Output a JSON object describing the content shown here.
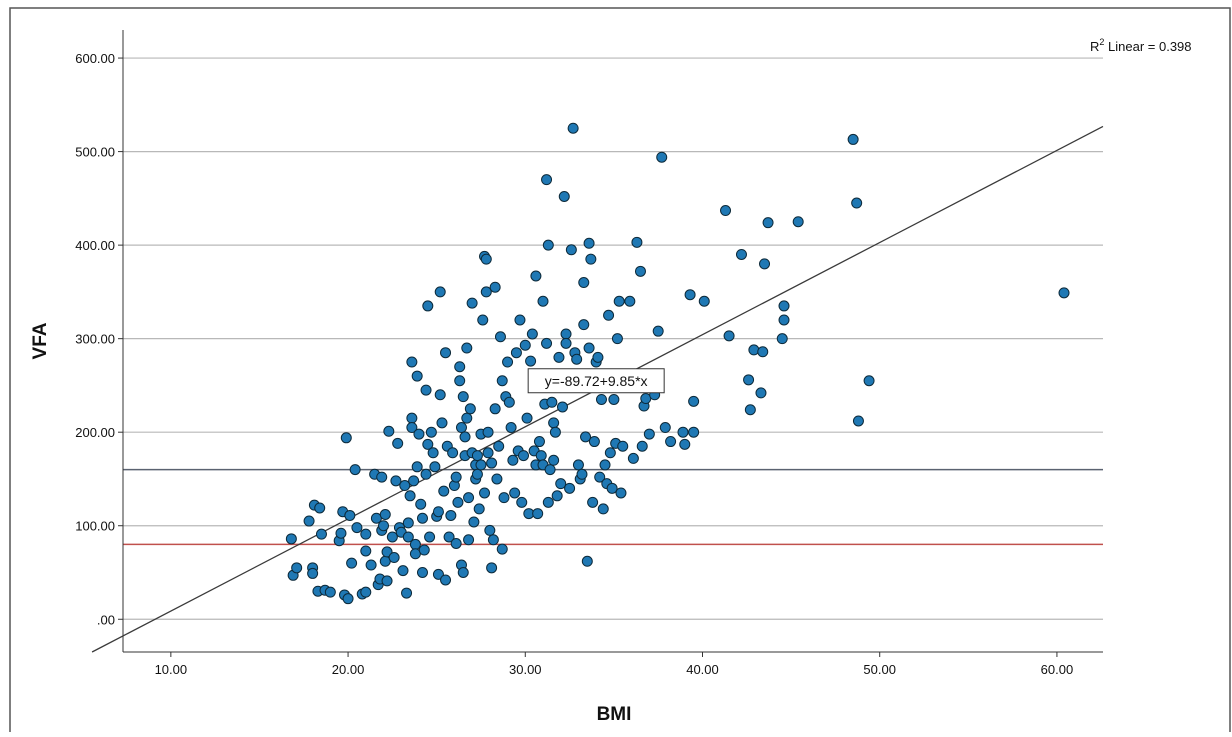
{
  "chart_data": {
    "type": "scatter",
    "xlabel": "BMI",
    "ylabel": "VFA",
    "xlim": [
      7.3,
      62.6
    ],
    "ylim": [
      -35,
      630
    ],
    "xticks": [
      10,
      20,
      30,
      40,
      50,
      60
    ],
    "xtick_labels": [
      "10.00",
      "20.00",
      "30.00",
      "40.00",
      "50.00",
      "60.00"
    ],
    "yticks": [
      0,
      100,
      200,
      300,
      400,
      500,
      600
    ],
    "ytick_labels": [
      ".00",
      "100.00",
      "200.00",
      "300.00",
      "400.00",
      "500.00",
      "600.00"
    ],
    "grid": true,
    "r2_label": "R",
    "r2_superscript": "2",
    "r2_text": " Linear = 0.398",
    "fit_line": {
      "intercept": -89.72,
      "slope": 9.85,
      "label": "y=-89.72+9.85*x",
      "label_at": [
        34.0,
        255.0
      ]
    },
    "reference_lines": [
      {
        "y": 160,
        "color": "#5a6270"
      },
      {
        "y": 80,
        "color": "#c0504d"
      }
    ],
    "colors": {
      "marker_fill": "#1f78b4",
      "marker_stroke": "#0d2a3a",
      "grid": "#b8b8b8",
      "axis": "#333333",
      "fit_line": "#3a3a3a"
    },
    "points": [
      [
        16.8,
        86
      ],
      [
        16.9,
        47
      ],
      [
        17.1,
        55
      ],
      [
        17.8,
        105
      ],
      [
        18.0,
        55
      ],
      [
        18.0,
        49
      ],
      [
        18.1,
        122
      ],
      [
        18.3,
        30
      ],
      [
        18.4,
        119
      ],
      [
        18.5,
        91
      ],
      [
        18.7,
        31
      ],
      [
        19.0,
        29
      ],
      [
        19.5,
        84
      ],
      [
        19.6,
        92
      ],
      [
        19.7,
        115
      ],
      [
        19.8,
        26
      ],
      [
        19.9,
        194
      ],
      [
        20.0,
        22
      ],
      [
        20.1,
        111
      ],
      [
        20.2,
        60
      ],
      [
        20.4,
        160
      ],
      [
        20.5,
        98
      ],
      [
        20.8,
        27
      ],
      [
        21.0,
        29
      ],
      [
        21.0,
        73
      ],
      [
        21.0,
        91
      ],
      [
        21.3,
        58
      ],
      [
        21.5,
        155
      ],
      [
        21.6,
        108
      ],
      [
        21.7,
        37
      ],
      [
        21.8,
        43
      ],
      [
        21.9,
        95
      ],
      [
        21.9,
        152
      ],
      [
        22.0,
        100
      ],
      [
        22.1,
        112
      ],
      [
        22.1,
        62
      ],
      [
        22.2,
        72
      ],
      [
        22.2,
        41
      ],
      [
        22.3,
        201
      ],
      [
        22.5,
        88
      ],
      [
        22.6,
        66
      ],
      [
        22.7,
        148
      ],
      [
        22.8,
        188
      ],
      [
        22.9,
        98
      ],
      [
        23.0,
        93
      ],
      [
        23.1,
        52
      ],
      [
        23.2,
        143
      ],
      [
        23.3,
        28
      ],
      [
        23.4,
        88
      ],
      [
        23.4,
        103
      ],
      [
        23.5,
        132
      ],
      [
        23.6,
        275
      ],
      [
        23.6,
        215
      ],
      [
        23.6,
        205
      ],
      [
        23.7,
        148
      ],
      [
        23.8,
        80
      ],
      [
        23.8,
        70
      ],
      [
        23.9,
        260
      ],
      [
        23.9,
        163
      ],
      [
        24.0,
        198
      ],
      [
        24.1,
        123
      ],
      [
        24.2,
        108
      ],
      [
        24.2,
        50
      ],
      [
        24.3,
        74
      ],
      [
        24.4,
        245
      ],
      [
        24.4,
        155
      ],
      [
        24.5,
        187
      ],
      [
        24.5,
        335
      ],
      [
        24.6,
        88
      ],
      [
        24.7,
        200
      ],
      [
        24.8,
        178
      ],
      [
        24.9,
        163
      ],
      [
        25.0,
        110
      ],
      [
        25.1,
        115
      ],
      [
        25.1,
        48
      ],
      [
        25.2,
        350
      ],
      [
        25.2,
        240
      ],
      [
        25.3,
        210
      ],
      [
        25.4,
        137
      ],
      [
        25.5,
        42
      ],
      [
        25.5,
        285
      ],
      [
        25.6,
        185
      ],
      [
        25.7,
        88
      ],
      [
        25.8,
        111
      ],
      [
        25.9,
        178
      ],
      [
        26.0,
        143
      ],
      [
        26.1,
        81
      ],
      [
        26.1,
        152
      ],
      [
        26.2,
        125
      ],
      [
        26.3,
        270
      ],
      [
        26.3,
        255
      ],
      [
        26.4,
        205
      ],
      [
        26.4,
        58
      ],
      [
        26.5,
        50
      ],
      [
        26.5,
        238
      ],
      [
        26.6,
        195
      ],
      [
        26.6,
        175
      ],
      [
        26.7,
        290
      ],
      [
        26.7,
        215
      ],
      [
        26.8,
        130
      ],
      [
        26.8,
        85
      ],
      [
        26.9,
        225
      ],
      [
        27.0,
        178
      ],
      [
        27.0,
        338
      ],
      [
        27.1,
        104
      ],
      [
        27.2,
        165
      ],
      [
        27.2,
        150
      ],
      [
        27.3,
        155
      ],
      [
        27.3,
        175
      ],
      [
        27.4,
        118
      ],
      [
        27.5,
        198
      ],
      [
        27.5,
        165
      ],
      [
        27.6,
        320
      ],
      [
        27.7,
        388
      ],
      [
        27.7,
        135
      ],
      [
        27.8,
        350
      ],
      [
        27.8,
        385
      ],
      [
        27.9,
        200
      ],
      [
        27.9,
        178
      ],
      [
        28.0,
        95
      ],
      [
        28.1,
        55
      ],
      [
        28.1,
        167
      ],
      [
        28.2,
        85
      ],
      [
        28.3,
        355
      ],
      [
        28.3,
        225
      ],
      [
        28.4,
        150
      ],
      [
        28.5,
        185
      ],
      [
        28.6,
        302
      ],
      [
        28.7,
        255
      ],
      [
        28.7,
        75
      ],
      [
        28.8,
        130
      ],
      [
        28.9,
        238
      ],
      [
        29.0,
        275
      ],
      [
        29.1,
        232
      ],
      [
        29.2,
        205
      ],
      [
        29.3,
        170
      ],
      [
        29.4,
        135
      ],
      [
        29.5,
        285
      ],
      [
        29.6,
        180
      ],
      [
        29.7,
        320
      ],
      [
        29.8,
        125
      ],
      [
        29.9,
        175
      ],
      [
        30.0,
        293
      ],
      [
        30.1,
        215
      ],
      [
        30.2,
        113
      ],
      [
        30.3,
        276
      ],
      [
        30.4,
        305
      ],
      [
        30.5,
        180
      ],
      [
        30.6,
        165
      ],
      [
        30.6,
        367
      ],
      [
        30.7,
        113
      ],
      [
        30.8,
        190
      ],
      [
        30.9,
        175
      ],
      [
        31.0,
        165
      ],
      [
        31.0,
        340
      ],
      [
        31.1,
        230
      ],
      [
        31.2,
        295
      ],
      [
        31.2,
        470
      ],
      [
        31.3,
        400
      ],
      [
        31.3,
        125
      ],
      [
        31.4,
        160
      ],
      [
        31.5,
        232
      ],
      [
        31.6,
        170
      ],
      [
        31.6,
        210
      ],
      [
        31.7,
        200
      ],
      [
        31.8,
        132
      ],
      [
        31.9,
        280
      ],
      [
        32.0,
        145
      ],
      [
        32.1,
        227
      ],
      [
        32.2,
        452
      ],
      [
        32.3,
        305
      ],
      [
        32.3,
        295
      ],
      [
        32.5,
        140
      ],
      [
        32.6,
        395
      ],
      [
        32.7,
        525
      ],
      [
        32.8,
        285
      ],
      [
        32.9,
        278
      ],
      [
        33.0,
        165
      ],
      [
        33.1,
        150
      ],
      [
        33.2,
        155
      ],
      [
        33.3,
        315
      ],
      [
        33.3,
        360
      ],
      [
        33.4,
        195
      ],
      [
        33.5,
        62
      ],
      [
        33.6,
        290
      ],
      [
        33.6,
        402
      ],
      [
        33.7,
        385
      ],
      [
        33.8,
        125
      ],
      [
        33.9,
        190
      ],
      [
        34.0,
        275
      ],
      [
        34.1,
        280
      ],
      [
        34.2,
        152
      ],
      [
        34.3,
        235
      ],
      [
        34.4,
        118
      ],
      [
        34.5,
        165
      ],
      [
        34.6,
        145
      ],
      [
        34.7,
        325
      ],
      [
        34.8,
        178
      ],
      [
        34.9,
        140
      ],
      [
        35.0,
        235
      ],
      [
        35.1,
        188
      ],
      [
        35.2,
        300
      ],
      [
        35.3,
        340
      ],
      [
        35.4,
        135
      ],
      [
        35.5,
        185
      ],
      [
        35.9,
        340
      ],
      [
        36.1,
        172
      ],
      [
        36.3,
        403
      ],
      [
        36.5,
        372
      ],
      [
        36.6,
        185
      ],
      [
        36.7,
        228
      ],
      [
        36.8,
        236
      ],
      [
        37.0,
        198
      ],
      [
        37.3,
        240
      ],
      [
        37.5,
        308
      ],
      [
        37.7,
        494
      ],
      [
        37.9,
        205
      ],
      [
        38.2,
        190
      ],
      [
        38.9,
        200
      ],
      [
        39.0,
        187
      ],
      [
        39.3,
        347
      ],
      [
        39.5,
        200
      ],
      [
        39.5,
        233
      ],
      [
        40.1,
        340
      ],
      [
        41.3,
        437
      ],
      [
        41.5,
        303
      ],
      [
        42.2,
        390
      ],
      [
        42.6,
        256
      ],
      [
        42.7,
        224
      ],
      [
        42.9,
        288
      ],
      [
        43.3,
        242
      ],
      [
        43.4,
        286
      ],
      [
        43.5,
        380
      ],
      [
        43.7,
        424
      ],
      [
        44.5,
        300
      ],
      [
        44.6,
        320
      ],
      [
        44.6,
        335
      ],
      [
        45.4,
        425
      ],
      [
        48.5,
        513
      ],
      [
        48.7,
        445
      ],
      [
        48.8,
        212
      ],
      [
        49.4,
        255
      ],
      [
        60.4,
        349
      ]
    ]
  }
}
